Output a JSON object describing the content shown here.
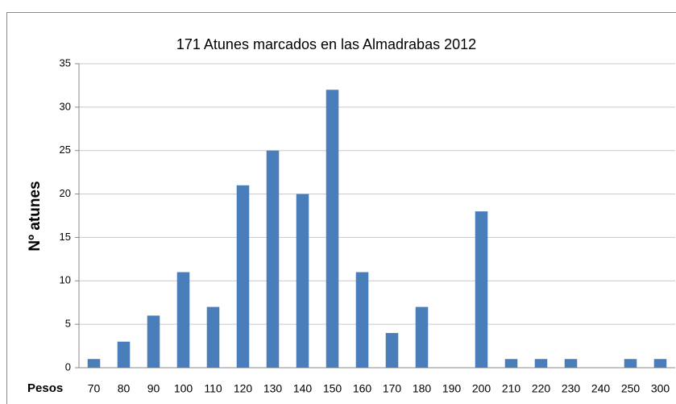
{
  "chart_data": {
    "type": "bar",
    "title": "171 Atunes marcados  en las Almadrabas 2012",
    "x_label": "Pesos",
    "y_label": "Nº atunes",
    "categories": [
      "70",
      "80",
      "90",
      "100",
      "110",
      "120",
      "130",
      "140",
      "150",
      "160",
      "170",
      "180",
      "190",
      "200",
      "210",
      "220",
      "230",
      "240",
      "250",
      "300"
    ],
    "values": [
      1,
      3,
      6,
      11,
      7,
      21,
      25,
      20,
      32,
      11,
      4,
      7,
      0,
      18,
      1,
      1,
      1,
      0,
      1,
      1
    ],
    "color": "#4a7ebb",
    "ylim": [
      0,
      35
    ],
    "yticks": [
      0,
      5,
      10,
      15,
      20,
      25,
      30,
      35
    ],
    "grid": true
  }
}
